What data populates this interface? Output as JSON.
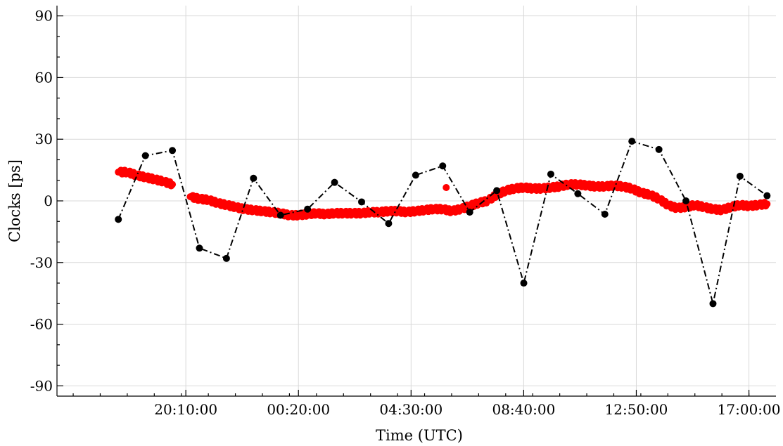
{
  "chart_data": {
    "type": "scatter",
    "title": "",
    "xlabel": "Time (UTC)",
    "ylabel": "Clocks [ps]",
    "grid": true,
    "legend": "none",
    "x_unit": "hours",
    "xlim": [
      15.4,
      42.0
    ],
    "ylim": [
      -95,
      95
    ],
    "x_ticks": [
      {
        "value": 20.1667,
        "label": "20:10:00"
      },
      {
        "value": 24.3333,
        "label": "00:20:00"
      },
      {
        "value": 28.5,
        "label": "04:30:00"
      },
      {
        "value": 32.6667,
        "label": "08:40:00"
      },
      {
        "value": 36.8333,
        "label": "12:50:00"
      },
      {
        "value": 41.0,
        "label": "17:00:00"
      }
    ],
    "y_ticks": [
      {
        "value": 90,
        "label": "90"
      },
      {
        "value": 60,
        "label": "60"
      },
      {
        "value": 30,
        "label": "30"
      },
      {
        "value": 0,
        "label": "0"
      },
      {
        "value": -30,
        "label": "-30"
      },
      {
        "value": -60,
        "label": "-60"
      },
      {
        "value": -90,
        "label": "-90"
      }
    ],
    "series": [
      {
        "style": "dash-dot line with black circle markers",
        "color": "#000000",
        "points": [
          [
            17.67,
            -9
          ],
          [
            18.67,
            22
          ],
          [
            19.67,
            24.5
          ],
          [
            20.67,
            -23
          ],
          [
            21.67,
            -28
          ],
          [
            22.67,
            11
          ],
          [
            23.67,
            -7
          ],
          [
            24.67,
            -4
          ],
          [
            25.67,
            9
          ],
          [
            26.67,
            -0.5
          ],
          [
            27.67,
            -11
          ],
          [
            28.67,
            12.5
          ],
          [
            29.67,
            17
          ],
          [
            30.67,
            -5.5
          ],
          [
            31.67,
            5
          ],
          [
            32.67,
            -40
          ],
          [
            33.67,
            13
          ],
          [
            34.67,
            3.5
          ],
          [
            35.67,
            -6.5
          ],
          [
            36.67,
            29
          ],
          [
            37.67,
            25
          ],
          [
            38.67,
            0
          ],
          [
            39.67,
            -50
          ],
          [
            40.67,
            12
          ],
          [
            41.67,
            2.5
          ]
        ]
      },
      {
        "style": "dense red dots",
        "color": "#ff0000",
        "points": [
          [
            17.67,
            14
          ],
          [
            18.0,
            14
          ],
          [
            18.33,
            12.5
          ],
          [
            18.67,
            11.5
          ],
          [
            19.0,
            10.5
          ],
          [
            19.33,
            9.5
          ],
          [
            19.67,
            8
          ],
          [
            20.33,
            2
          ],
          [
            20.67,
            1
          ],
          [
            21.0,
            0.5
          ],
          [
            21.33,
            -1
          ],
          [
            21.67,
            -2
          ],
          [
            22.0,
            -3
          ],
          [
            22.33,
            -4
          ],
          [
            22.67,
            -4.5
          ],
          [
            23.0,
            -5
          ],
          [
            23.33,
            -5.5
          ],
          [
            23.67,
            -6
          ],
          [
            24.0,
            -7
          ],
          [
            24.33,
            -7
          ],
          [
            24.67,
            -6.5
          ],
          [
            25.0,
            -6
          ],
          [
            25.33,
            -6.5
          ],
          [
            25.67,
            -6
          ],
          [
            26.0,
            -6
          ],
          [
            26.33,
            -6
          ],
          [
            26.67,
            -6
          ],
          [
            27.0,
            -5.5
          ],
          [
            27.33,
            -5.5
          ],
          [
            27.67,
            -5
          ],
          [
            28.0,
            -5
          ],
          [
            28.33,
            -5.5
          ],
          [
            28.67,
            -5
          ],
          [
            29.0,
            -4.5
          ],
          [
            29.33,
            -4
          ],
          [
            29.67,
            -4
          ],
          [
            30.0,
            -5
          ],
          [
            30.33,
            -4
          ],
          [
            30.67,
            -2.5
          ],
          [
            31.0,
            -1
          ],
          [
            31.33,
            0
          ],
          [
            31.67,
            3
          ],
          [
            32.0,
            5
          ],
          [
            32.33,
            6
          ],
          [
            32.67,
            6.5
          ],
          [
            33.0,
            6
          ],
          [
            33.33,
            6
          ],
          [
            33.67,
            6.5
          ],
          [
            34.0,
            7
          ],
          [
            34.33,
            8
          ],
          [
            34.67,
            8
          ],
          [
            35.0,
            7.5
          ],
          [
            35.33,
            7
          ],
          [
            35.67,
            7
          ],
          [
            36.0,
            7.5
          ],
          [
            36.33,
            7
          ],
          [
            36.67,
            6
          ],
          [
            37.0,
            4
          ],
          [
            37.33,
            3
          ],
          [
            37.67,
            1
          ],
          [
            38.0,
            -2
          ],
          [
            38.33,
            -3.5
          ],
          [
            38.67,
            -3
          ],
          [
            39.0,
            -2
          ],
          [
            39.33,
            -3
          ],
          [
            39.67,
            -4
          ],
          [
            40.0,
            -4.5
          ],
          [
            40.33,
            -3
          ],
          [
            40.67,
            -2
          ],
          [
            41.0,
            -2.5
          ],
          [
            41.33,
            -2
          ],
          [
            41.67,
            -1.5
          ],
          [
            29.8,
            6.5
          ]
        ]
      }
    ]
  }
}
